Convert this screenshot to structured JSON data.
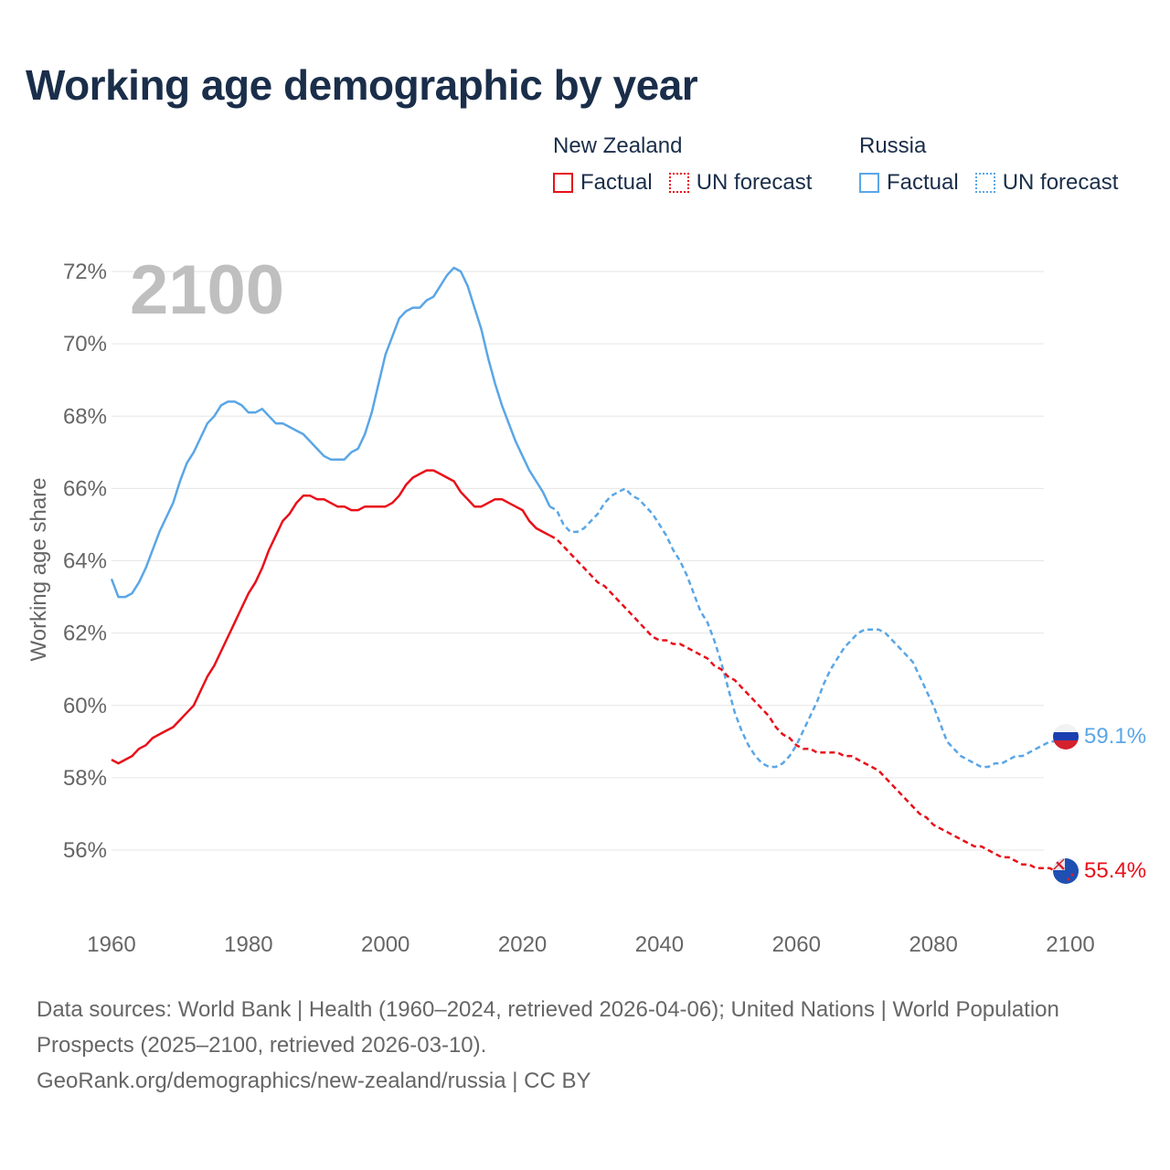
{
  "title": "Working age demographic by year",
  "legend": {
    "groups": [
      {
        "name": "New Zealand",
        "factual": "Factual",
        "forecast": "UN forecast",
        "color": "#e8101a"
      },
      {
        "name": "Russia",
        "factual": "Factual",
        "forecast": "UN forecast",
        "color": "#5aa6e6"
      }
    ]
  },
  "year_label": "2100",
  "end_labels": {
    "russia": "59.1%",
    "new_zealand": "55.4%"
  },
  "sources": {
    "line1": "Data sources: World Bank | Health (1960–2024, retrieved 2026-04-06); United Nations | World Population Prospects (2025–2100, retrieved 2026-03-10).",
    "line2": "GeoRank.org/demographics/new-zealand/russia | CC BY"
  },
  "chart_data": {
    "type": "line",
    "title": "Working age demographic by year",
    "xlabel": "",
    "ylabel": "Working age share",
    "xlim": [
      1960,
      2100
    ],
    "ylim": [
      54,
      73
    ],
    "x_ticks": [
      1960,
      1980,
      2000,
      2020,
      2040,
      2060,
      2080,
      2100
    ],
    "y_ticks": [
      56,
      58,
      60,
      62,
      64,
      66,
      68,
      70,
      72
    ],
    "y_tick_labels": [
      "56%",
      "58%",
      "60%",
      "62%",
      "64%",
      "66%",
      "68%",
      "70%",
      "72%"
    ],
    "grid": true,
    "legend_position": "top-right",
    "factual_end_year": 2024,
    "series": [
      {
        "name": "Russia",
        "color": "#5aa6e6",
        "x": [
          1960,
          1961,
          1962,
          1963,
          1964,
          1965,
          1966,
          1967,
          1968,
          1969,
          1970,
          1971,
          1972,
          1973,
          1974,
          1975,
          1976,
          1977,
          1978,
          1979,
          1980,
          1981,
          1982,
          1983,
          1984,
          1985,
          1986,
          1987,
          1988,
          1989,
          1990,
          1991,
          1992,
          1993,
          1994,
          1995,
          1996,
          1997,
          1998,
          1999,
          2000,
          2001,
          2002,
          2003,
          2004,
          2005,
          2006,
          2007,
          2008,
          2009,
          2010,
          2011,
          2012,
          2013,
          2014,
          2015,
          2016,
          2017,
          2018,
          2019,
          2020,
          2021,
          2022,
          2023,
          2024,
          2025,
          2026,
          2027,
          2028,
          2029,
          2030,
          2031,
          2032,
          2033,
          2034,
          2035,
          2036,
          2037,
          2038,
          2039,
          2040,
          2041,
          2042,
          2043,
          2044,
          2045,
          2046,
          2047,
          2048,
          2049,
          2050,
          2051,
          2052,
          2053,
          2054,
          2055,
          2056,
          2057,
          2058,
          2059,
          2060,
          2061,
          2062,
          2063,
          2064,
          2065,
          2066,
          2067,
          2068,
          2069,
          2070,
          2071,
          2072,
          2073,
          2074,
          2075,
          2076,
          2077,
          2078,
          2079,
          2080,
          2081,
          2082,
          2083,
          2084,
          2085,
          2086,
          2087,
          2088,
          2089,
          2090,
          2091,
          2092,
          2093,
          2094,
          2095,
          2096,
          2097,
          2098,
          2099,
          2100
        ],
        "values": [
          63.5,
          63.0,
          63.0,
          63.1,
          63.4,
          63.8,
          64.3,
          64.8,
          65.2,
          65.6,
          66.2,
          66.7,
          67.0,
          67.4,
          67.8,
          68.0,
          68.3,
          68.4,
          68.4,
          68.3,
          68.1,
          68.1,
          68.2,
          68.0,
          67.8,
          67.8,
          67.7,
          67.6,
          67.5,
          67.3,
          67.1,
          66.9,
          66.8,
          66.8,
          66.8,
          67.0,
          67.1,
          67.5,
          68.1,
          68.9,
          69.7,
          70.2,
          70.7,
          70.9,
          71.0,
          71.0,
          71.2,
          71.3,
          71.6,
          71.9,
          72.1,
          72.0,
          71.6,
          71.0,
          70.4,
          69.6,
          68.9,
          68.3,
          67.8,
          67.3,
          66.9,
          66.5,
          66.2,
          65.9,
          65.5,
          65.4,
          65.0,
          64.8,
          64.8,
          64.9,
          65.1,
          65.3,
          65.6,
          65.8,
          65.9,
          66.0,
          65.8,
          65.7,
          65.5,
          65.3,
          65.0,
          64.7,
          64.3,
          64.0,
          63.6,
          63.1,
          62.6,
          62.3,
          61.8,
          61.2,
          60.5,
          59.8,
          59.3,
          58.9,
          58.6,
          58.4,
          58.3,
          58.3,
          58.4,
          58.6,
          58.9,
          59.3,
          59.7,
          60.1,
          60.6,
          61.0,
          61.3,
          61.6,
          61.8,
          62.0,
          62.1,
          62.1,
          62.1,
          62.0,
          61.8,
          61.6,
          61.4,
          61.2,
          60.8,
          60.4,
          60.0,
          59.5,
          59.0,
          58.8,
          58.6,
          58.5,
          58.4,
          58.3,
          58.3,
          58.4,
          58.4,
          58.5,
          58.6,
          58.6,
          58.7,
          58.8,
          58.9,
          59.0,
          59.0,
          59.1,
          59.1
        ]
      },
      {
        "name": "New Zealand",
        "color": "#e8101a",
        "x": [
          1960,
          1961,
          1962,
          1963,
          1964,
          1965,
          1966,
          1967,
          1968,
          1969,
          1970,
          1971,
          1972,
          1973,
          1974,
          1975,
          1976,
          1977,
          1978,
          1979,
          1980,
          1981,
          1982,
          1983,
          1984,
          1985,
          1986,
          1987,
          1988,
          1989,
          1990,
          1991,
          1992,
          1993,
          1994,
          1995,
          1996,
          1997,
          1998,
          1999,
          2000,
          2001,
          2002,
          2003,
          2004,
          2005,
          2006,
          2007,
          2008,
          2009,
          2010,
          2011,
          2012,
          2013,
          2014,
          2015,
          2016,
          2017,
          2018,
          2019,
          2020,
          2021,
          2022,
          2023,
          2024,
          2025,
          2026,
          2027,
          2028,
          2029,
          2030,
          2031,
          2032,
          2033,
          2034,
          2035,
          2036,
          2037,
          2038,
          2039,
          2040,
          2041,
          2042,
          2043,
          2044,
          2045,
          2046,
          2047,
          2048,
          2049,
          2050,
          2051,
          2052,
          2053,
          2054,
          2055,
          2056,
          2057,
          2058,
          2059,
          2060,
          2061,
          2062,
          2063,
          2064,
          2065,
          2066,
          2067,
          2068,
          2069,
          2070,
          2071,
          2072,
          2073,
          2074,
          2075,
          2076,
          2077,
          2078,
          2079,
          2080,
          2081,
          2082,
          2083,
          2084,
          2085,
          2086,
          2087,
          2088,
          2089,
          2090,
          2091,
          2092,
          2093,
          2094,
          2095,
          2096,
          2097,
          2098,
          2099,
          2100
        ],
        "values": [
          58.5,
          58.4,
          58.5,
          58.6,
          58.8,
          58.9,
          59.1,
          59.2,
          59.3,
          59.4,
          59.6,
          59.8,
          60.0,
          60.4,
          60.8,
          61.1,
          61.5,
          61.9,
          62.3,
          62.7,
          63.1,
          63.4,
          63.8,
          64.3,
          64.7,
          65.1,
          65.3,
          65.6,
          65.8,
          65.8,
          65.7,
          65.7,
          65.6,
          65.5,
          65.5,
          65.4,
          65.4,
          65.5,
          65.5,
          65.5,
          65.5,
          65.6,
          65.8,
          66.1,
          66.3,
          66.4,
          66.5,
          66.5,
          66.4,
          66.3,
          66.2,
          65.9,
          65.7,
          65.5,
          65.5,
          65.6,
          65.7,
          65.7,
          65.6,
          65.5,
          65.4,
          65.1,
          64.9,
          64.8,
          64.7,
          64.6,
          64.4,
          64.2,
          64.0,
          63.8,
          63.6,
          63.4,
          63.3,
          63.1,
          62.9,
          62.7,
          62.5,
          62.3,
          62.1,
          61.9,
          61.8,
          61.8,
          61.7,
          61.7,
          61.6,
          61.5,
          61.4,
          61.3,
          61.1,
          61.0,
          60.8,
          60.7,
          60.5,
          60.3,
          60.1,
          59.9,
          59.7,
          59.4,
          59.2,
          59.1,
          58.9,
          58.8,
          58.8,
          58.7,
          58.7,
          58.7,
          58.7,
          58.6,
          58.6,
          58.5,
          58.4,
          58.3,
          58.2,
          58.0,
          57.8,
          57.6,
          57.4,
          57.2,
          57.0,
          56.9,
          56.7,
          56.6,
          56.5,
          56.4,
          56.3,
          56.2,
          56.1,
          56.1,
          56.0,
          55.9,
          55.8,
          55.8,
          55.7,
          55.6,
          55.6,
          55.5,
          55.5,
          55.5,
          55.4,
          55.4,
          55.4
        ]
      }
    ]
  }
}
